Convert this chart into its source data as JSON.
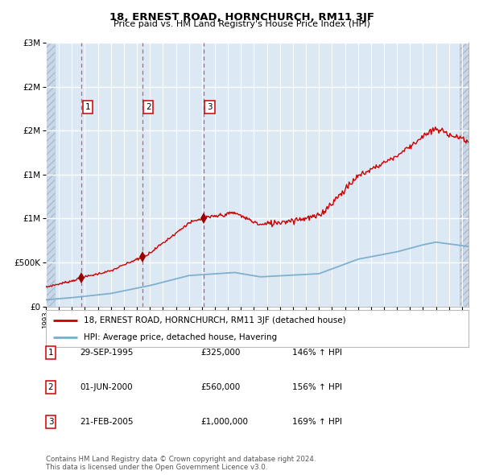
{
  "title": "18, ERNEST ROAD, HORNCHURCH, RM11 3JF",
  "subtitle": "Price paid vs. HM Land Registry's House Price Index (HPI)",
  "background_color": "#ffffff",
  "plot_bg_color": "#dce9f5",
  "hatch_color": "#c8d8ea",
  "grid_color": "#ffffff",
  "purchases": [
    {
      "date": "1995-09-29",
      "price": 325000,
      "label": "1",
      "x": 1995.75
    },
    {
      "date": "2000-06-01",
      "price": 560000,
      "label": "2",
      "x": 2000.42
    },
    {
      "date": "2005-02-21",
      "price": 1000000,
      "label": "3",
      "x": 2005.14
    }
  ],
  "legend_line1": "18, ERNEST ROAD, HORNCHURCH, RM11 3JF (detached house)",
  "legend_line2": "HPI: Average price, detached house, Havering",
  "table_rows": [
    {
      "num": "1",
      "date": "29-SEP-1995",
      "price": "£325,000",
      "hpi": "146% ↑ HPI"
    },
    {
      "num": "2",
      "date": "01-JUN-2000",
      "price": "£560,000",
      "hpi": "156% ↑ HPI"
    },
    {
      "num": "3",
      "date": "21-FEB-2005",
      "price": "£1,000,000",
      "hpi": "169% ↑ HPI"
    }
  ],
  "footer": "Contains HM Land Registry data © Crown copyright and database right 2024.\nThis data is licensed under the Open Government Licence v3.0.",
  "red_line_color": "#cc0000",
  "blue_line_color": "#7aadcc",
  "marker_color": "#990000",
  "dashed_color": "#cc4444",
  "label_box_color": "#cc0000",
  "ylim": [
    0,
    3000000
  ],
  "xmin": 1993.0,
  "xmax": 2025.5,
  "hatch_left_end": 1993.7,
  "hatch_right_start": 2024.85
}
